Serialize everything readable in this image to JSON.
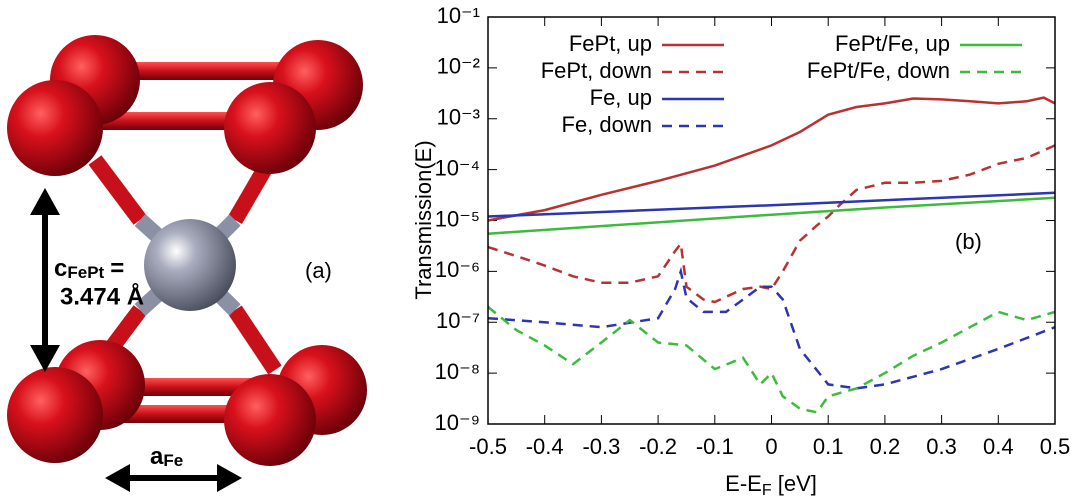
{
  "structure": {
    "c_symbol": "c",
    "c_subscript": "FePt",
    "c_equals": "=",
    "c_value": "3.474 Å",
    "a_symbol": "a",
    "a_subscript": "Fe",
    "panel_label": "(a)"
  },
  "chart_data": {
    "type": "line",
    "y_label": "Transmission(E)",
    "x_label": [
      "E-E",
      "F",
      " [eV]"
    ],
    "annotation": "(b)",
    "log_y": true,
    "grid": false,
    "xlim": [
      -0.5,
      0.5
    ],
    "xticks": [
      -0.5,
      -0.4,
      -0.3,
      -0.2,
      -0.1,
      0,
      0.1,
      0.2,
      0.3,
      0.4,
      0.5
    ],
    "ylim": [
      1e-09,
      0.1
    ],
    "yticks": [
      {
        "value": 1e-09,
        "label": "10⁻⁹"
      },
      {
        "value": 1e-08,
        "label": "10⁻⁸"
      },
      {
        "value": 1e-07,
        "label": "10⁻⁷"
      },
      {
        "value": 1e-06,
        "label": "10⁻⁶"
      },
      {
        "value": 1e-05,
        "label": "10⁻⁵"
      },
      {
        "value": 0.0001,
        "label": "10⁻⁴"
      },
      {
        "value": 0.001,
        "label": "10⁻³"
      },
      {
        "value": 0.01,
        "label": "10⁻²"
      },
      {
        "value": 0.1,
        "label": "10⁻¹"
      }
    ],
    "series": [
      {
        "name": "FePt, up",
        "color": "#b83232",
        "dashed": false,
        "x": [
          -0.5,
          -0.4,
          -0.3,
          -0.2,
          -0.1,
          0,
          0.05,
          0.1,
          0.15,
          0.2,
          0.25,
          0.3,
          0.35,
          0.4,
          0.45,
          0.48,
          0.5
        ],
        "values": [
          1e-05,
          1.6e-05,
          3.2e-05,
          6e-05,
          0.00012,
          0.0003,
          0.00055,
          0.0012,
          0.0017,
          0.002,
          0.0025,
          0.0024,
          0.0022,
          0.002,
          0.0022,
          0.0026,
          0.002
        ]
      },
      {
        "name": "FePt, down",
        "color": "#b83232",
        "dashed": true,
        "x": [
          -0.5,
          -0.45,
          -0.4,
          -0.35,
          -0.3,
          -0.25,
          -0.2,
          -0.17,
          -0.16,
          -0.15,
          -0.12,
          -0.1,
          -0.05,
          -0.02,
          0,
          0.02,
          0.05,
          0.08,
          0.1,
          0.12,
          0.15,
          0.2,
          0.25,
          0.3,
          0.35,
          0.4,
          0.45,
          0.5
        ],
        "values": [
          3e-06,
          2e-06,
          1.3e-06,
          8e-07,
          6e-07,
          6e-07,
          8e-07,
          2.5e-06,
          3.5e-06,
          5e-07,
          2.8e-07,
          2.5e-07,
          4.5e-07,
          5e-07,
          4.5e-07,
          1e-06,
          4e-06,
          8e-06,
          1.2e-05,
          2e-05,
          4e-05,
          5.5e-05,
          5.5e-05,
          6e-05,
          8e-05,
          0.00013,
          0.00017,
          0.0003
        ]
      },
      {
        "name": "Fe, up",
        "color": "#2b36b0",
        "dashed": false,
        "x": [
          -0.5,
          0,
          0.5
        ],
        "values": [
          1.2e-05,
          2e-05,
          3.5e-05
        ]
      },
      {
        "name": "Fe, down",
        "color": "#2b36b0",
        "dashed": true,
        "x": [
          -0.5,
          -0.4,
          -0.3,
          -0.2,
          -0.17,
          -0.16,
          -0.15,
          -0.12,
          -0.08,
          -0.05,
          -0.02,
          0,
          0.02,
          0.05,
          0.1,
          0.15,
          0.2,
          0.3,
          0.4,
          0.5
        ],
        "values": [
          1.2e-07,
          1e-07,
          8e-08,
          1.2e-07,
          4.5e-07,
          1e-06,
          3e-07,
          1.6e-07,
          1.6e-07,
          2.8e-07,
          5e-07,
          5e-07,
          2.8e-07,
          3e-08,
          6e-09,
          5e-09,
          6e-09,
          1.2e-08,
          3e-08,
          8e-08
        ]
      },
      {
        "name": "FePt/Fe, up",
        "color": "#3dbb3d",
        "dashed": false,
        "x": [
          -0.5,
          0,
          0.2,
          0.5
        ],
        "values": [
          5.5e-06,
          1.3e-05,
          1.8e-05,
          2.8e-05
        ]
      },
      {
        "name": "FePt/Fe, down",
        "color": "#3dbb3d",
        "dashed": true,
        "x": [
          -0.5,
          -0.45,
          -0.4,
          -0.35,
          -0.3,
          -0.25,
          -0.2,
          -0.15,
          -0.1,
          -0.05,
          -0.02,
          0,
          0.02,
          0.05,
          0.08,
          0.1,
          0.15,
          0.2,
          0.25,
          0.3,
          0.35,
          0.4,
          0.45,
          0.5
        ],
        "values": [
          2e-07,
          7e-08,
          3.5e-08,
          1.5e-08,
          4e-08,
          1.1e-07,
          4e-08,
          3.5e-08,
          1.2e-08,
          2e-08,
          6e-09,
          1e-08,
          3.5e-09,
          2e-09,
          1.7e-09,
          3.5e-09,
          5e-09,
          1e-08,
          2.2e-08,
          4e-08,
          8e-08,
          1.6e-07,
          1.1e-07,
          1.6e-07
        ]
      }
    ]
  }
}
